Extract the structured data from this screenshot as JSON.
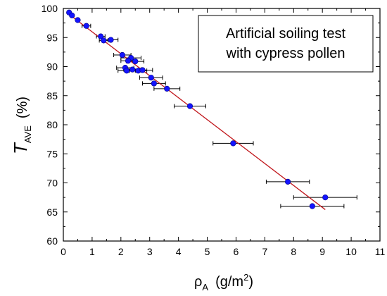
{
  "chart_data": {
    "type": "scatter",
    "annotation": {
      "line1": "Artificial soiling test",
      "line2": "with cypress pollen"
    },
    "xlabel": {
      "symbol": "ρ",
      "subscript": "A",
      "units_prefix": "(g/m",
      "units_exp": "2",
      "units_suffix": ")"
    },
    "ylabel": {
      "symbol": "T",
      "subscript": "AVE",
      "units": "(%)"
    },
    "xlim": [
      0,
      11
    ],
    "ylim": [
      60,
      100
    ],
    "xticks": [
      0,
      1,
      2,
      3,
      4,
      5,
      6,
      7,
      8,
      9,
      10,
      11
    ],
    "yticks": [
      60,
      65,
      70,
      75,
      80,
      85,
      90,
      95,
      100
    ],
    "fit_line": {
      "x": [
        0.2,
        9.1
      ],
      "y": [
        99.0,
        65.4
      ],
      "color": "#c0161b"
    },
    "marker_color": "#1414ff",
    "errorbar_color": "#000000",
    "points": [
      {
        "x": 0.2,
        "y": 99.3,
        "xerr": 0.0
      },
      {
        "x": 0.3,
        "y": 98.8,
        "xerr": 0.0
      },
      {
        "x": 0.5,
        "y": 98.0,
        "xerr": 0.0
      },
      {
        "x": 0.8,
        "y": 97.0,
        "xerr": 0.15
      },
      {
        "x": 1.3,
        "y": 95.2,
        "xerr": 0.15
      },
      {
        "x": 1.4,
        "y": 94.5,
        "xerr": 0.15
      },
      {
        "x": 1.65,
        "y": 94.6,
        "xerr": 0.25
      },
      {
        "x": 2.05,
        "y": 92.0,
        "xerr": 0.3
      },
      {
        "x": 2.35,
        "y": 91.5,
        "xerr": 0.35
      },
      {
        "x": 2.25,
        "y": 91.0,
        "xerr": 0.25
      },
      {
        "x": 2.5,
        "y": 90.9,
        "xerr": 0.3
      },
      {
        "x": 2.15,
        "y": 89.8,
        "xerr": 0.3
      },
      {
        "x": 2.2,
        "y": 89.3,
        "xerr": 0.3
      },
      {
        "x": 2.4,
        "y": 89.5,
        "xerr": 0.3
      },
      {
        "x": 2.6,
        "y": 89.3,
        "xerr": 0.3
      },
      {
        "x": 2.75,
        "y": 89.4,
        "xerr": 0.35
      },
      {
        "x": 3.05,
        "y": 88.1,
        "xerr": 0.4
      },
      {
        "x": 3.15,
        "y": 87.1,
        "xerr": 0.4
      },
      {
        "x": 3.6,
        "y": 86.2,
        "xerr": 0.45
      },
      {
        "x": 4.4,
        "y": 83.2,
        "xerr": 0.55
      },
      {
        "x": 5.9,
        "y": 76.8,
        "xerr": 0.7
      },
      {
        "x": 7.8,
        "y": 70.2,
        "xerr": 0.75
      },
      {
        "x": 9.1,
        "y": 67.5,
        "xerr": 1.1
      },
      {
        "x": 8.65,
        "y": 66.0,
        "xerr": 1.1
      }
    ]
  }
}
